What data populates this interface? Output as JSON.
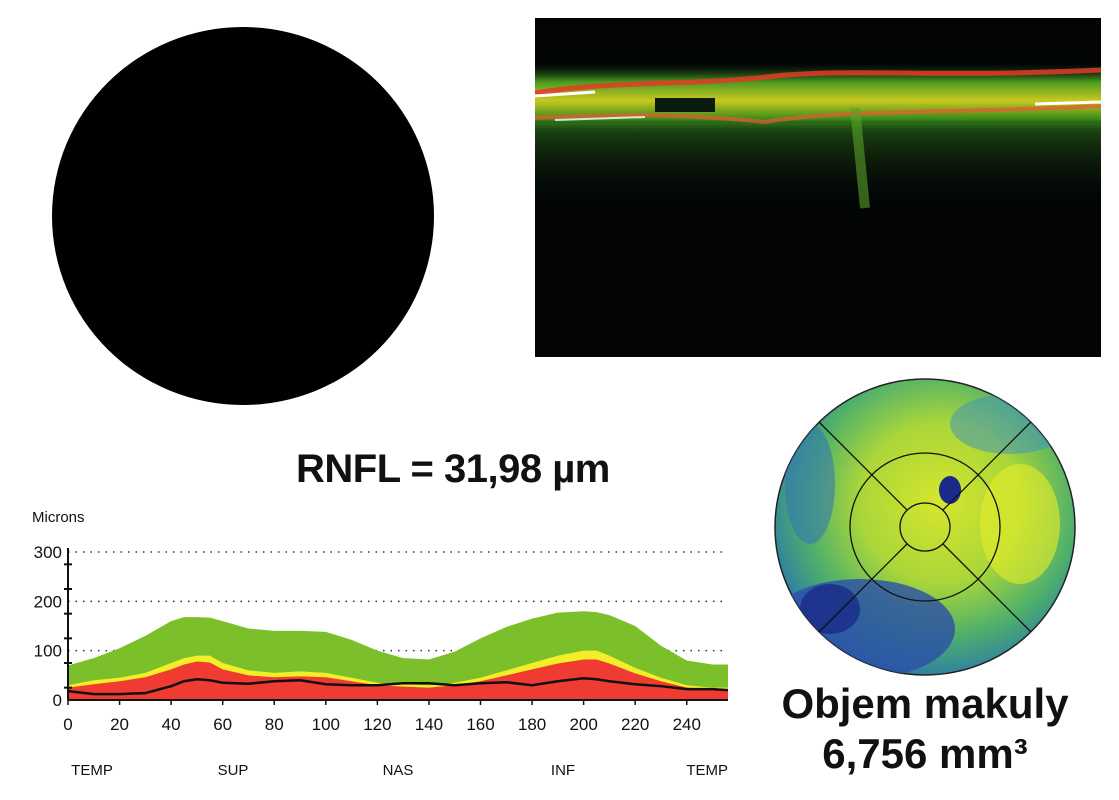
{
  "rnfl": {
    "label": "RNFL = 31,98 µm"
  },
  "macula": {
    "title": "Objem makuly",
    "value": "6,756 mm³"
  },
  "chart_data": {
    "type": "area",
    "ylabel": "Microns",
    "ylim": [
      0,
      300
    ],
    "xlim": [
      0,
      256
    ],
    "y_ticks": [
      0,
      100,
      200,
      300
    ],
    "x_ticks": [
      0,
      20,
      40,
      60,
      80,
      100,
      120,
      140,
      160,
      180,
      200,
      220,
      240
    ],
    "region_labels": [
      {
        "text": "TEMP",
        "at": 0
      },
      {
        "text": "SUP",
        "at": 64
      },
      {
        "text": "NAS",
        "at": 128
      },
      {
        "text": "INF",
        "at": 192
      },
      {
        "text": "TEMP",
        "at": 256
      }
    ],
    "grid": "dotted-horizontal",
    "x": [
      0,
      10,
      20,
      30,
      40,
      45,
      50,
      55,
      60,
      70,
      80,
      90,
      100,
      110,
      120,
      130,
      140,
      150,
      160,
      170,
      180,
      190,
      200,
      205,
      210,
      220,
      230,
      240,
      250,
      256
    ],
    "series": [
      {
        "color": "#7bbf2a",
        "values": [
          70,
          85,
          105,
          130,
          160,
          168,
          168,
          167,
          160,
          145,
          140,
          140,
          138,
          122,
          100,
          85,
          82,
          98,
          125,
          148,
          165,
          177,
          180,
          178,
          172,
          150,
          110,
          80,
          72,
          72
        ]
      },
      {
        "color": "#f2ef2a",
        "values": [
          30,
          40,
          45,
          55,
          75,
          85,
          90,
          90,
          75,
          60,
          55,
          58,
          55,
          45,
          35,
          32,
          30,
          35,
          45,
          60,
          75,
          90,
          100,
          100,
          90,
          65,
          45,
          30,
          25,
          25
        ]
      },
      {
        "color": "#ef3b32",
        "values": [
          25,
          32,
          38,
          46,
          62,
          72,
          78,
          76,
          62,
          50,
          46,
          48,
          46,
          38,
          30,
          27,
          25,
          30,
          38,
          50,
          62,
          74,
          82,
          82,
          74,
          54,
          38,
          25,
          20,
          20
        ]
      },
      {
        "color": "#111111",
        "values": [
          18,
          12,
          12,
          14,
          28,
          38,
          42,
          40,
          35,
          33,
          38,
          40,
          32,
          30,
          30,
          34,
          34,
          30,
          34,
          36,
          30,
          38,
          44,
          42,
          38,
          32,
          28,
          22,
          22,
          20
        ]
      }
    ]
  }
}
